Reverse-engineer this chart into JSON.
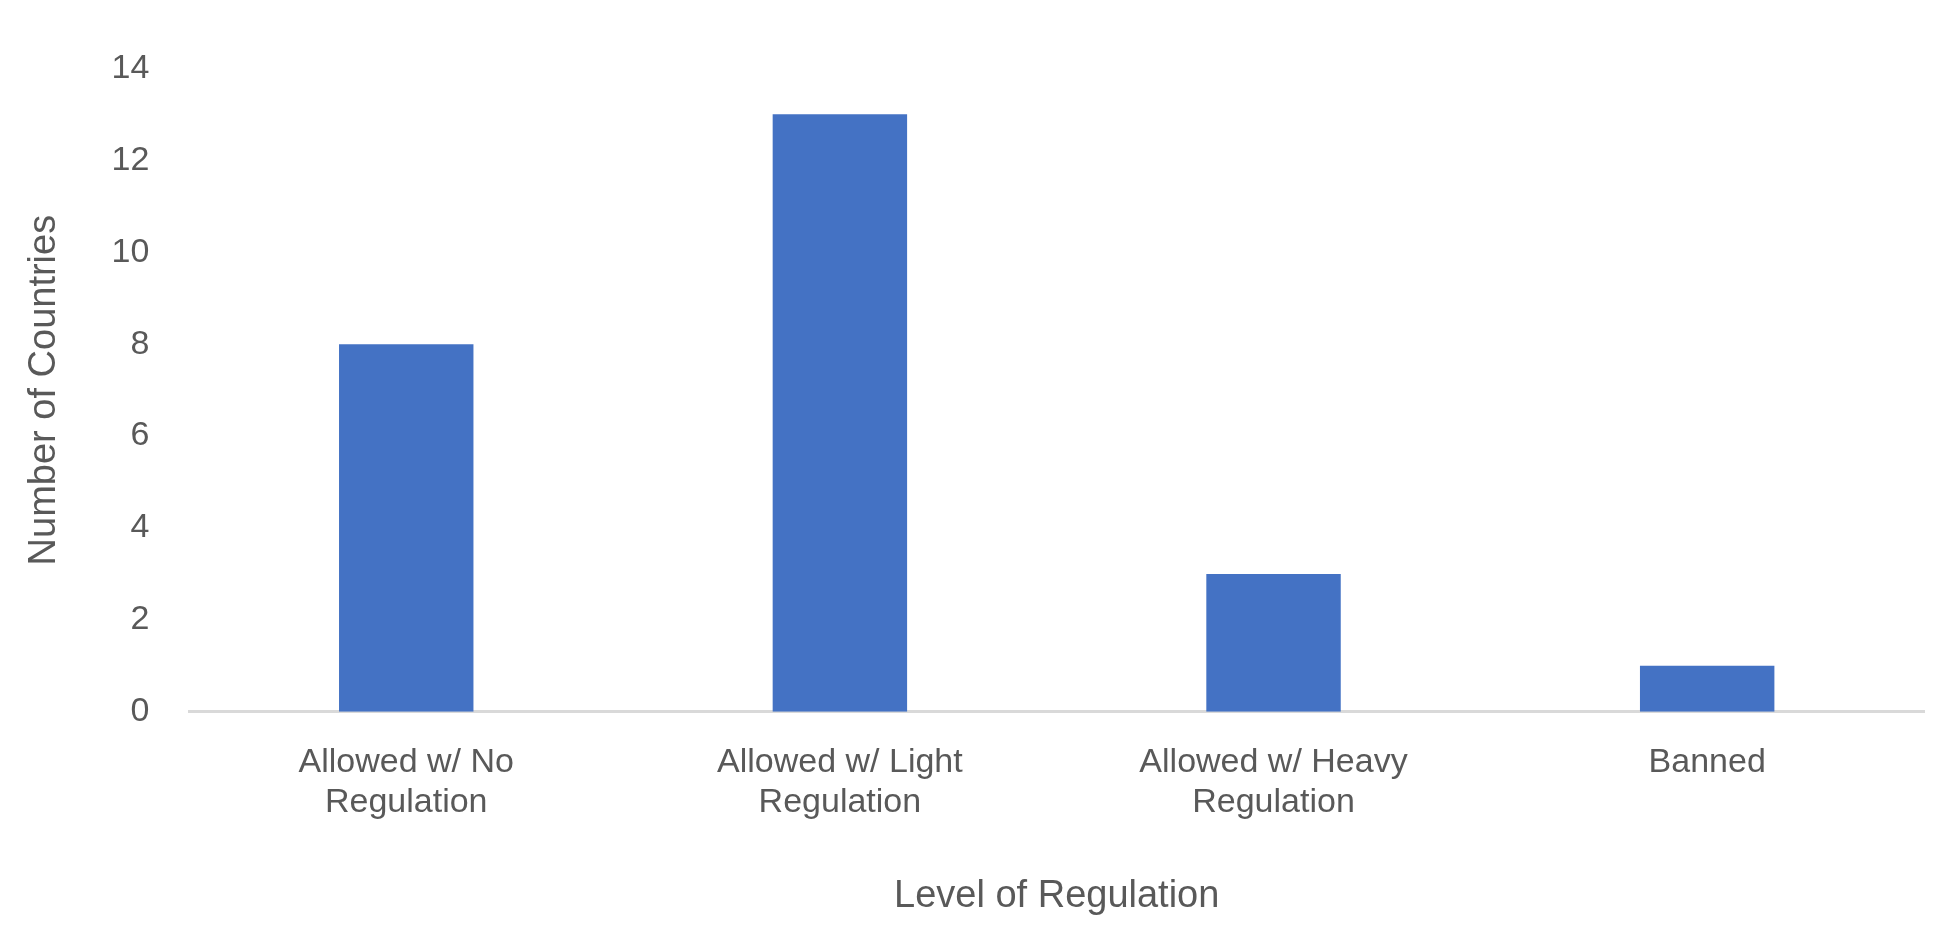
{
  "chart_data": {
    "type": "bar",
    "xlabel": "Level of Regulation",
    "ylabel": "Number of Countries",
    "categories": [
      "Allowed w/ No Regulation",
      "Allowed w/ Light Regulation",
      "Allowed w/ Heavy Regulation",
      "Banned"
    ],
    "values": [
      8,
      13,
      3,
      1
    ],
    "color": "#4472c4",
    "ylim": [
      0,
      14
    ],
    "yticks": [
      0,
      2,
      4,
      6,
      8,
      10,
      12,
      14
    ],
    "grid": false,
    "legend": false
  }
}
